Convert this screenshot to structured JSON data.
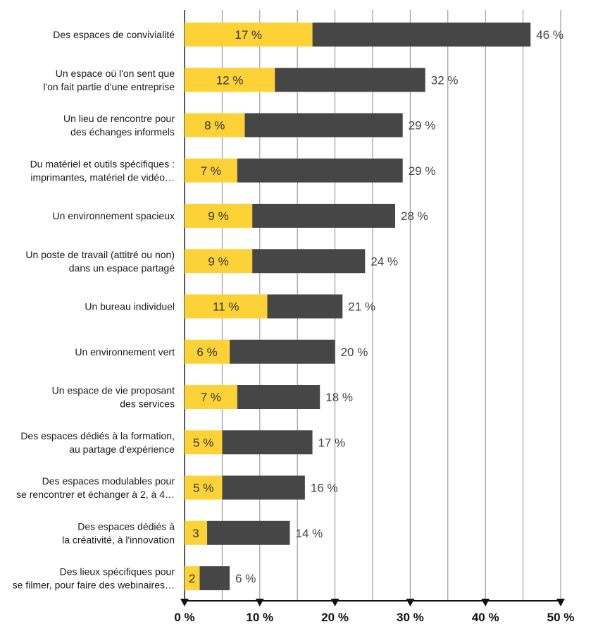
{
  "chart_data": {
    "type": "bar",
    "orientation": "horizontal",
    "stacked": true,
    "categories": [
      [
        "Des espaces de convivialité"
      ],
      [
        "Un espace où l'on sent que",
        "l'on fait partie d'une entreprise"
      ],
      [
        "Un lieu de rencontre pour",
        "des échanges informels"
      ],
      [
        "Du matériel et outils spécifiques :",
        "imprimantes, matériel de vidéo…"
      ],
      [
        "Un environnement spacieux"
      ],
      [
        "Un poste de travail (attitré ou non)",
        "dans un espace partagé"
      ],
      [
        "Un bureau individuel"
      ],
      [
        "Un environnement vert"
      ],
      [
        "Un espace de vie proposant",
        "des services"
      ],
      [
        "Des espaces dédiés à la formation,",
        "au partage d'expérience"
      ],
      [
        "Des espaces modulables pour",
        "se rencontrer et échanger à 2, à 4…"
      ],
      [
        "Des espaces dédiés à",
        "la créativité, à l'innovation"
      ],
      [
        "Des lieux spécifiques pour",
        "se filmer, pour faire des webinaires…"
      ]
    ],
    "series": [
      {
        "color": "#FDD236",
        "values": [
          17,
          12,
          8,
          7,
          9,
          9,
          11,
          6,
          7,
          5,
          5,
          3,
          2
        ],
        "labels": [
          "17 %",
          "12 %",
          "8 %",
          "7 %",
          "9 %",
          "9 %",
          "11 %",
          "6 %",
          "7 %",
          "5 %",
          "5 %",
          "3",
          "2"
        ]
      },
      {
        "color": "#464646",
        "totals": [
          46,
          32,
          29,
          29,
          28,
          24,
          21,
          20,
          18,
          17,
          16,
          14,
          6
        ],
        "labels": [
          "46 %",
          "32 %",
          "29 %",
          "29 %",
          "28 %",
          "24 %",
          "21 %",
          "20 %",
          "18 %",
          "17 %",
          "16 %",
          "14 %",
          "6 %"
        ]
      }
    ],
    "xlim": [
      0,
      50
    ],
    "xticks": [
      0,
      10,
      20,
      30,
      40,
      50
    ],
    "xtick_labels": [
      "0 %",
      "10 %",
      "20 %",
      "30 %",
      "40 %",
      "50 %"
    ],
    "minor_gridlines": [
      5,
      15,
      25,
      35,
      45
    ],
    "grid": true
  }
}
